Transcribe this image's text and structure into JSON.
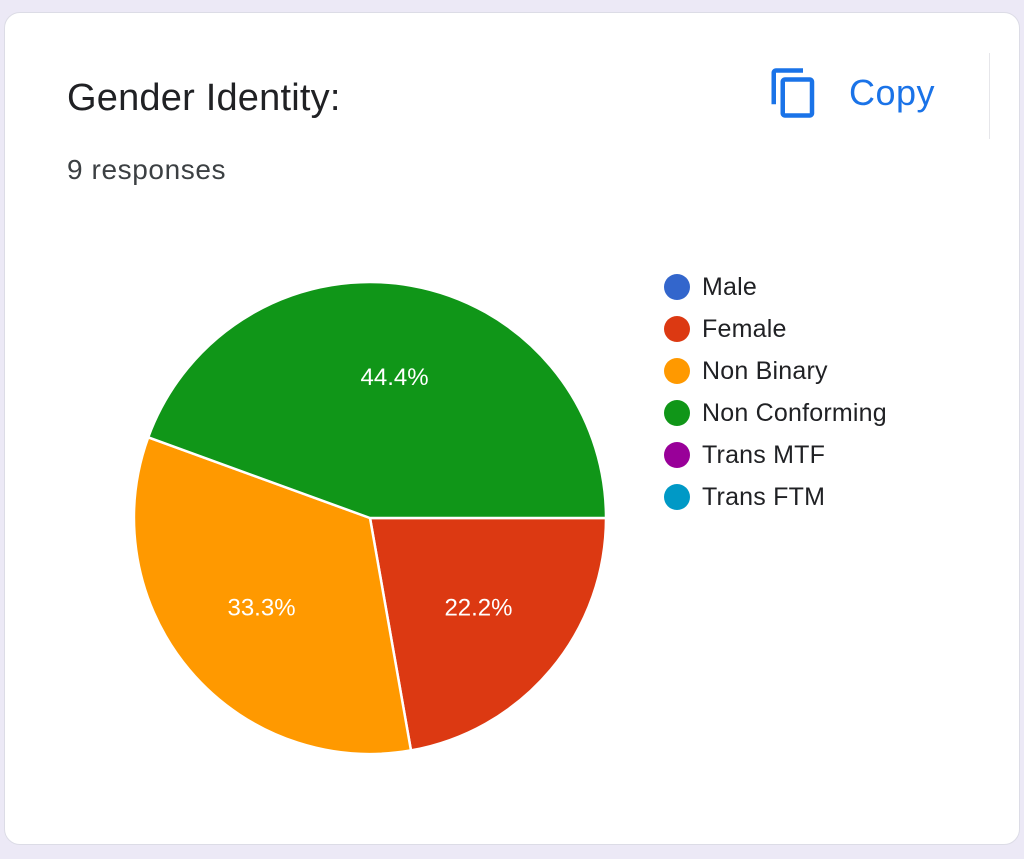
{
  "header": {
    "title": "Gender Identity:",
    "responses": "9 responses",
    "copy_label": "Copy",
    "copy_icon": "copy-icon"
  },
  "colors": {
    "accent": "#1a73e8",
    "slice_stroke": "#ffffff",
    "data_label": "#ffffff"
  },
  "chart_data": {
    "type": "pie",
    "legend_position": "right",
    "categories": [
      "Male",
      "Female",
      "Non Binary",
      "Non Conforming",
      "Trans MTF",
      "Trans FTM"
    ],
    "values": [
      0,
      2,
      3,
      4,
      0,
      0
    ],
    "percent_labels": [
      "",
      "22.2%",
      "33.3%",
      "44.4%",
      "",
      ""
    ],
    "colors": [
      "#3366cc",
      "#dc3912",
      "#ff9900",
      "#109618",
      "#990099",
      "#0099c6"
    ]
  }
}
